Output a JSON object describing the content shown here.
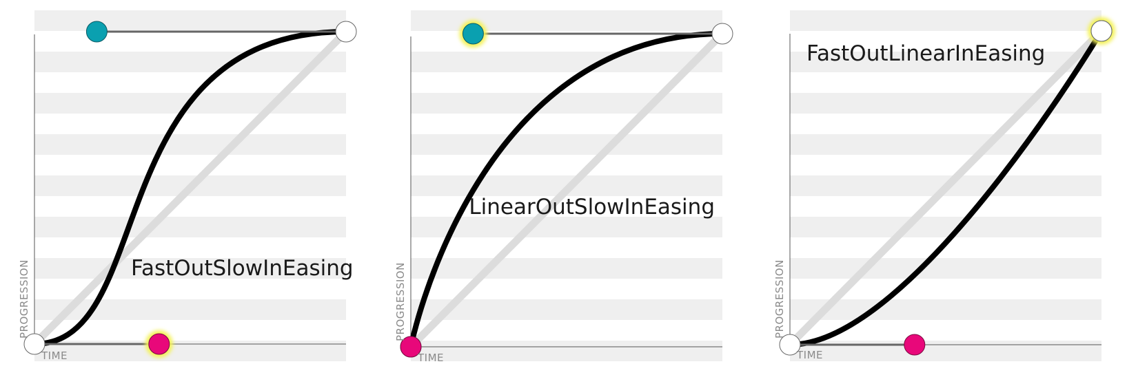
{
  "panels": [
    {
      "title": "FastOutSlowInEasing",
      "control_point_1": [
        0.4,
        0.0
      ],
      "control_point_2": [
        0.2,
        1.0
      ],
      "highlighted_handle": "cp1",
      "x_axis_label": "TIME",
      "y_axis_label": "PROGRESSION"
    },
    {
      "title": "LinearOutSlowInEasing",
      "control_point_1": [
        0.0,
        0.0
      ],
      "control_point_2": [
        0.2,
        1.0
      ],
      "highlighted_handle": "cp2",
      "x_axis_label": "TIME",
      "y_axis_label": "PROGRESSION"
    },
    {
      "title": "FastOutLinearInEasing",
      "control_point_1": [
        0.4,
        0.0
      ],
      "control_point_2": [
        1.0,
        1.0
      ],
      "highlighted_handle": "end",
      "x_axis_label": "TIME",
      "y_axis_label": "PROGRESSION"
    }
  ],
  "colors": {
    "stripe": "#efefef",
    "curve": "#000000",
    "diagonal": "#dcdcdc",
    "handle_line": "#666666",
    "cp1_handle": "#e8087a",
    "cp2_handle": "#0aa0b0",
    "endpoint": "#ffffff",
    "glow": "#f4f25a"
  }
}
